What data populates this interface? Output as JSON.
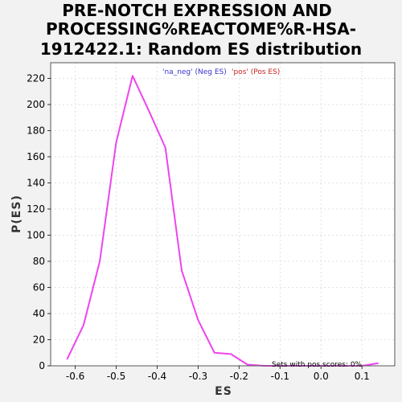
{
  "chart_data": {
    "type": "line",
    "title": [
      "PRE-NOTCH EXPRESSION AND",
      "PROCESSING%REACTOME%R-HSA-",
      "1912422.1: Random ES distribution"
    ],
    "xlabel": "ES",
    "ylabel": "P(ES)",
    "xlim": [
      -0.66,
      0.18
    ],
    "ylim": [
      0,
      232
    ],
    "xticks": [
      -0.6,
      -0.5,
      -0.4,
      -0.3,
      -0.2,
      -0.1,
      0.0,
      0.1
    ],
    "xtick_labels": [
      "-0.6",
      "-0.5",
      "-0.4",
      "-0.3",
      "-0.2",
      "-0.1",
      "0.0",
      "0.1"
    ],
    "yticks": [
      0,
      20,
      40,
      60,
      80,
      100,
      120,
      140,
      160,
      180,
      200,
      220
    ],
    "ytick_labels": [
      "0",
      "20",
      "40",
      "60",
      "80",
      "100",
      "120",
      "140",
      "160",
      "180",
      "200",
      "220"
    ],
    "grid": true,
    "legend_position": "top-center",
    "legend": [
      {
        "label": "'na_neg' (Neg ES)",
        "color": "#3333cc"
      },
      {
        "label": "'pos' (Pos ES)",
        "color": "#cc2222"
      }
    ],
    "annotation": "Sets with pos scores: 0%",
    "series": [
      {
        "color": "#ee44ee",
        "x": [
          -0.62,
          -0.58,
          -0.54,
          -0.5,
          -0.46,
          -0.42,
          -0.38,
          -0.34,
          -0.3,
          -0.26,
          -0.22,
          -0.18,
          -0.14,
          -0.1,
          -0.06,
          -0.02,
          0.02,
          0.06,
          0.1,
          0.14
        ],
        "y": [
          5,
          31,
          80,
          171,
          222,
          195,
          167,
          73,
          35,
          10,
          9,
          1,
          0,
          0,
          0,
          0,
          0,
          0,
          0,
          2
        ]
      }
    ]
  }
}
